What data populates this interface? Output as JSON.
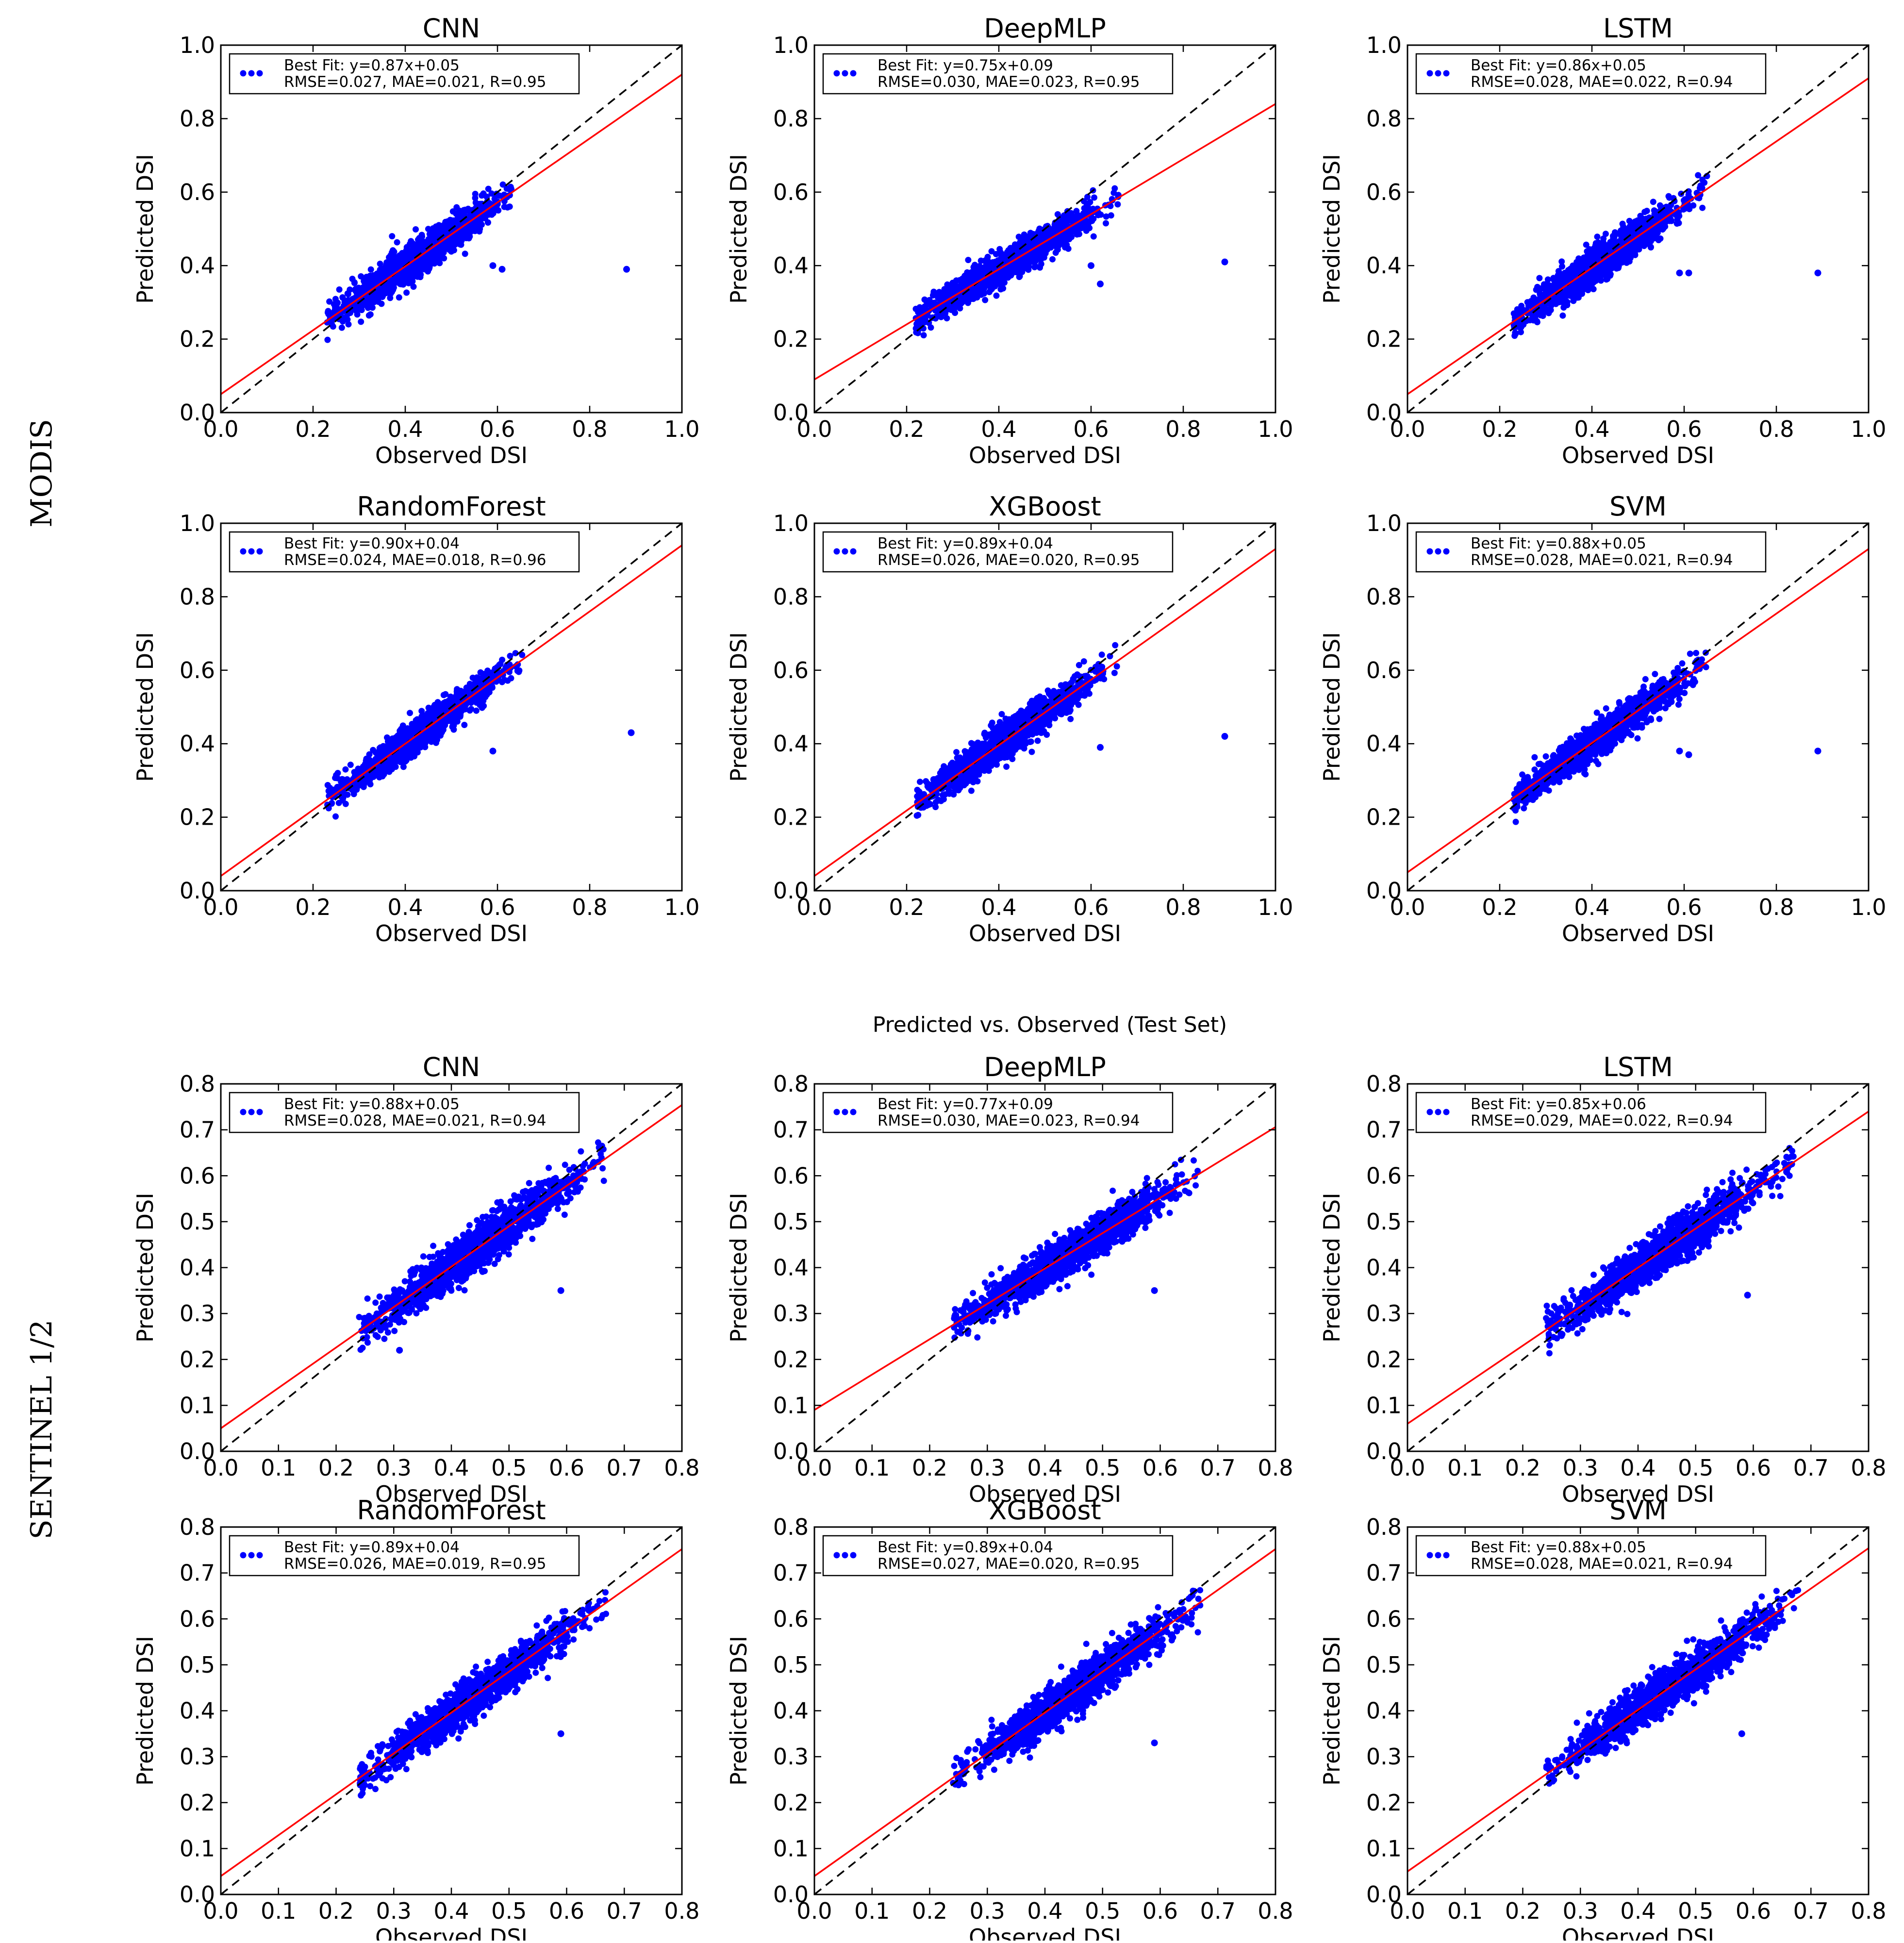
{
  "row_labels": [
    "MODIS",
    "SENTINEL 1/2"
  ],
  "suptitle": "Predicted vs. Observed (Test Set)",
  "colors": {
    "points": "#0000ff",
    "fit": "#ff0000",
    "identity": "#000000"
  },
  "chart_data": [
    {
      "type": "scatter",
      "group": "MODIS",
      "title": "CNN",
      "xlabel": "Observed DSI",
      "ylabel": "Predicted DSI",
      "xlim": [
        0,
        1
      ],
      "ylim": [
        0,
        1
      ],
      "xticks": [
        "0.0",
        "0.2",
        "0.4",
        "0.6",
        "0.8",
        "1.0"
      ],
      "yticks": [
        "0.0",
        "0.2",
        "0.4",
        "0.6",
        "0.8",
        "1.0"
      ],
      "legend_line1": "Best Fit: y=0.87x+0.05",
      "legend_line2": "RMSE=0.027, MAE=0.021, R=0.95",
      "legend_loc": "top-left",
      "fit": {
        "slope": 0.87,
        "intercept": 0.05
      },
      "cloud": {
        "xmin": 0.23,
        "xmax": 0.63,
        "center": [
          0.42,
          0.42
        ],
        "spread": 0.05
      },
      "outliers": [
        [
          0.88,
          0.39
        ],
        [
          0.61,
          0.39
        ],
        [
          0.59,
          0.4
        ]
      ]
    },
    {
      "type": "scatter",
      "group": "MODIS",
      "title": "DeepMLP",
      "xlabel": "Observed DSI",
      "ylabel": "Predicted DSI",
      "xlim": [
        0,
        1
      ],
      "ylim": [
        0,
        1
      ],
      "xticks": [
        "0.0",
        "0.2",
        "0.4",
        "0.6",
        "0.8",
        "1.0"
      ],
      "yticks": [
        "0.0",
        "0.2",
        "0.4",
        "0.6",
        "0.8",
        "1.0"
      ],
      "legend_line1": "Best Fit: y=0.75x+0.09",
      "legend_line2": "RMSE=0.030, MAE=0.023, R=0.95",
      "legend_loc": "top-left",
      "fit": {
        "slope": 0.75,
        "intercept": 0.09
      },
      "cloud": {
        "xmin": 0.22,
        "xmax": 0.66,
        "center": [
          0.42,
          0.4
        ],
        "spread": 0.045
      },
      "outliers": [
        [
          0.89,
          0.41
        ],
        [
          0.62,
          0.35
        ],
        [
          0.6,
          0.4
        ]
      ]
    },
    {
      "type": "scatter",
      "group": "MODIS",
      "title": "LSTM",
      "xlabel": "Observed DSI",
      "ylabel": "Predicted DSI",
      "xlim": [
        0,
        1
      ],
      "ylim": [
        0,
        1
      ],
      "xticks": [
        "0.0",
        "0.2",
        "0.4",
        "0.6",
        "0.8",
        "1.0"
      ],
      "yticks": [
        "0.0",
        "0.2",
        "0.4",
        "0.6",
        "0.8",
        "1.0"
      ],
      "legend_line1": "Best Fit: y=0.86x+0.05",
      "legend_line2": "RMSE=0.028, MAE=0.022, R=0.94",
      "legend_loc": "top-left",
      "fit": {
        "slope": 0.86,
        "intercept": 0.05
      },
      "cloud": {
        "xmin": 0.23,
        "xmax": 0.65,
        "center": [
          0.42,
          0.41
        ],
        "spread": 0.05
      },
      "outliers": [
        [
          0.89,
          0.38
        ],
        [
          0.59,
          0.38
        ],
        [
          0.61,
          0.38
        ]
      ]
    },
    {
      "type": "scatter",
      "group": "MODIS",
      "title": "RandomForest",
      "xlabel": "Observed DSI",
      "ylabel": "Predicted DSI",
      "xlim": [
        0,
        1
      ],
      "ylim": [
        0,
        1
      ],
      "xticks": [
        "0.0",
        "0.2",
        "0.4",
        "0.6",
        "0.8",
        "1.0"
      ],
      "yticks": [
        "0.0",
        "0.2",
        "0.4",
        "0.6",
        "0.8",
        "1.0"
      ],
      "legend_line1": "Best Fit: y=0.90x+0.04",
      "legend_line2": "RMSE=0.024, MAE=0.018, R=0.96",
      "legend_loc": "top-left",
      "fit": {
        "slope": 0.9,
        "intercept": 0.04
      },
      "cloud": {
        "xmin": 0.23,
        "xmax": 0.66,
        "center": [
          0.43,
          0.42
        ],
        "spread": 0.045
      },
      "outliers": [
        [
          0.89,
          0.43
        ],
        [
          0.59,
          0.38
        ]
      ]
    },
    {
      "type": "scatter",
      "group": "MODIS",
      "title": "XGBoost",
      "xlabel": "Observed DSI",
      "ylabel": "Predicted DSI",
      "xlim": [
        0,
        1
      ],
      "ylim": [
        0,
        1
      ],
      "xticks": [
        "0.0",
        "0.2",
        "0.4",
        "0.6",
        "0.8",
        "1.0"
      ],
      "yticks": [
        "0.0",
        "0.2",
        "0.4",
        "0.6",
        "0.8",
        "1.0"
      ],
      "legend_line1": "Best Fit: y=0.89x+0.04",
      "legend_line2": "RMSE=0.026, MAE=0.020, R=0.95",
      "legend_loc": "top-left",
      "fit": {
        "slope": 0.89,
        "intercept": 0.04
      },
      "cloud": {
        "xmin": 0.22,
        "xmax": 0.66,
        "center": [
          0.42,
          0.41
        ],
        "spread": 0.05
      },
      "outliers": [
        [
          0.89,
          0.42
        ],
        [
          0.62,
          0.39
        ]
      ]
    },
    {
      "type": "scatter",
      "group": "MODIS",
      "title": "SVM",
      "xlabel": "Observed DSI",
      "ylabel": "Predicted DSI",
      "xlim": [
        0,
        1
      ],
      "ylim": [
        0,
        1
      ],
      "xticks": [
        "0.0",
        "0.2",
        "0.4",
        "0.6",
        "0.8",
        "1.0"
      ],
      "yticks": [
        "0.0",
        "0.2",
        "0.4",
        "0.6",
        "0.8",
        "1.0"
      ],
      "legend_line1": "Best Fit: y=0.88x+0.05",
      "legend_line2": "RMSE=0.028, MAE=0.021, R=0.94",
      "legend_loc": "top-left",
      "fit": {
        "slope": 0.88,
        "intercept": 0.05
      },
      "cloud": {
        "xmin": 0.23,
        "xmax": 0.65,
        "center": [
          0.42,
          0.41
        ],
        "spread": 0.05
      },
      "outliers": [
        [
          0.89,
          0.38
        ],
        [
          0.59,
          0.38
        ],
        [
          0.61,
          0.37
        ]
      ]
    },
    {
      "type": "scatter",
      "group": "SENTINEL 1/2",
      "title": "CNN",
      "xlabel": "Observed DSI",
      "ylabel": "Predicted DSI",
      "xlim": [
        0,
        0.8
      ],
      "ylim": [
        0,
        0.8
      ],
      "xticks": [
        "0.0",
        "0.1",
        "0.2",
        "0.3",
        "0.4",
        "0.5",
        "0.6",
        "0.7",
        "0.8"
      ],
      "yticks": [
        "0.0",
        "0.1",
        "0.2",
        "0.3",
        "0.4",
        "0.5",
        "0.6",
        "0.7",
        "0.8"
      ],
      "legend_line1": "Best Fit: y=0.88x+0.05",
      "legend_line2": "RMSE=0.028, MAE=0.021, R=0.94",
      "legend_loc": "top-left",
      "fit": {
        "slope": 0.88,
        "intercept": 0.05
      },
      "cloud": {
        "xmin": 0.24,
        "xmax": 0.67,
        "center": [
          0.44,
          0.43
        ],
        "spread": 0.05
      },
      "outliers": [
        [
          0.59,
          0.35
        ],
        [
          0.31,
          0.22
        ]
      ]
    },
    {
      "type": "scatter",
      "group": "SENTINEL 1/2",
      "title": "DeepMLP",
      "xlabel": "Observed DSI",
      "ylabel": "Predicted DSI",
      "xlim": [
        0,
        0.8
      ],
      "ylim": [
        0,
        0.8
      ],
      "xticks": [
        "0.0",
        "0.1",
        "0.2",
        "0.3",
        "0.4",
        "0.5",
        "0.6",
        "0.7",
        "0.8"
      ],
      "yticks": [
        "0.0",
        "0.1",
        "0.2",
        "0.3",
        "0.4",
        "0.5",
        "0.6",
        "0.7",
        "0.8"
      ],
      "legend_line1": "Best Fit: y=0.77x+0.09",
      "legend_line2": "RMSE=0.030, MAE=0.023, R=0.94",
      "legend_loc": "top-left",
      "fit": {
        "slope": 0.77,
        "intercept": 0.09
      },
      "cloud": {
        "xmin": 0.24,
        "xmax": 0.67,
        "center": [
          0.44,
          0.42
        ],
        "spread": 0.045
      },
      "outliers": [
        [
          0.59,
          0.35
        ]
      ]
    },
    {
      "type": "scatter",
      "group": "SENTINEL 1/2",
      "title": "LSTM",
      "xlabel": "Observed DSI",
      "ylabel": "Predicted DSI",
      "xlim": [
        0,
        0.8
      ],
      "ylim": [
        0,
        0.8
      ],
      "xticks": [
        "0.0",
        "0.1",
        "0.2",
        "0.3",
        "0.4",
        "0.5",
        "0.6",
        "0.7",
        "0.8"
      ],
      "yticks": [
        "0.0",
        "0.1",
        "0.2",
        "0.3",
        "0.4",
        "0.5",
        "0.6",
        "0.7",
        "0.8"
      ],
      "legend_line1": "Best Fit: y=0.85x+0.06",
      "legend_line2": "RMSE=0.029, MAE=0.022, R=0.94",
      "legend_loc": "top-left",
      "fit": {
        "slope": 0.85,
        "intercept": 0.06
      },
      "cloud": {
        "xmin": 0.24,
        "xmax": 0.67,
        "center": [
          0.44,
          0.43
        ],
        "spread": 0.05
      },
      "outliers": [
        [
          0.59,
          0.34
        ]
      ]
    },
    {
      "type": "scatter",
      "group": "SENTINEL 1/2",
      "title": "RandomForest",
      "xlabel": "Observed DSI",
      "ylabel": "Predicted DSI",
      "xlim": [
        0,
        0.8
      ],
      "ylim": [
        0,
        0.8
      ],
      "xticks": [
        "0.0",
        "0.1",
        "0.2",
        "0.3",
        "0.4",
        "0.5",
        "0.6",
        "0.7",
        "0.8"
      ],
      "yticks": [
        "0.0",
        "0.1",
        "0.2",
        "0.3",
        "0.4",
        "0.5",
        "0.6",
        "0.7",
        "0.8"
      ],
      "legend_line1": "Best Fit: y=0.89x+0.04",
      "legend_line2": "RMSE=0.026, MAE=0.019, R=0.95",
      "legend_loc": "top-left",
      "fit": {
        "slope": 0.89,
        "intercept": 0.04
      },
      "cloud": {
        "xmin": 0.24,
        "xmax": 0.67,
        "center": [
          0.44,
          0.43
        ],
        "spread": 0.045
      },
      "outliers": [
        [
          0.59,
          0.35
        ]
      ]
    },
    {
      "type": "scatter",
      "group": "SENTINEL 1/2",
      "title": "XGBoost",
      "xlabel": "Observed DSI",
      "ylabel": "Predicted DSI",
      "xlim": [
        0,
        0.8
      ],
      "ylim": [
        0,
        0.8
      ],
      "xticks": [
        "0.0",
        "0.1",
        "0.2",
        "0.3",
        "0.4",
        "0.5",
        "0.6",
        "0.7",
        "0.8"
      ],
      "yticks": [
        "0.0",
        "0.1",
        "0.2",
        "0.3",
        "0.4",
        "0.5",
        "0.6",
        "0.7",
        "0.8"
      ],
      "legend_line1": "Best Fit: y=0.89x+0.04",
      "legend_line2": "RMSE=0.027, MAE=0.020, R=0.95",
      "legend_loc": "top-left",
      "fit": {
        "slope": 0.89,
        "intercept": 0.04
      },
      "cloud": {
        "xmin": 0.24,
        "xmax": 0.67,
        "center": [
          0.45,
          0.44
        ],
        "spread": 0.05
      },
      "outliers": [
        [
          0.59,
          0.33
        ]
      ]
    },
    {
      "type": "scatter",
      "group": "SENTINEL 1/2",
      "title": "SVM",
      "xlabel": "Observed DSI",
      "ylabel": "Predicted DSI",
      "xlim": [
        0,
        0.8
      ],
      "ylim": [
        0,
        0.8
      ],
      "xticks": [
        "0.0",
        "0.1",
        "0.2",
        "0.3",
        "0.4",
        "0.5",
        "0.6",
        "0.7",
        "0.8"
      ],
      "yticks": [
        "0.0",
        "0.1",
        "0.2",
        "0.3",
        "0.4",
        "0.5",
        "0.6",
        "0.7",
        "0.8"
      ],
      "legend_line1": "Best Fit: y=0.88x+0.05",
      "legend_line2": "RMSE=0.028, MAE=0.021, R=0.94",
      "legend_loc": "top-left",
      "fit": {
        "slope": 0.88,
        "intercept": 0.05
      },
      "cloud": {
        "xmin": 0.24,
        "xmax": 0.68,
        "center": [
          0.45,
          0.44
        ],
        "spread": 0.05
      },
      "outliers": [
        [
          0.58,
          0.35
        ]
      ]
    }
  ]
}
